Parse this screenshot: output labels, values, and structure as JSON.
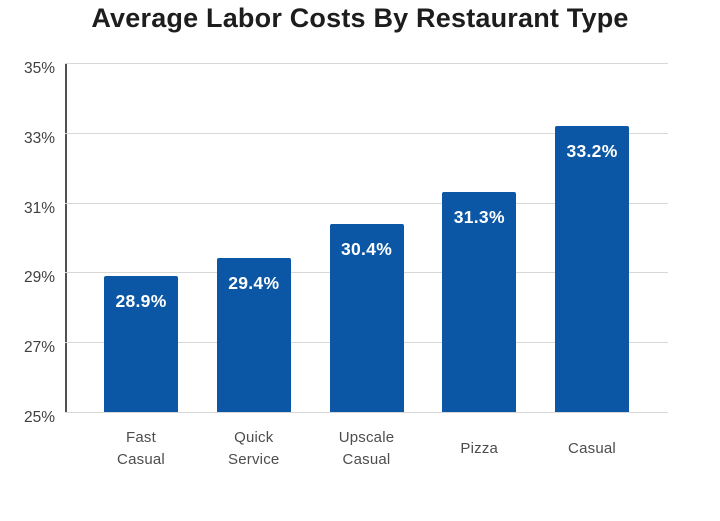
{
  "title": "Average Labor Costs By Restaurant Type",
  "colors": {
    "bar": "#0b57a6",
    "bar_value_text": "#ffffff",
    "gridline": "#d8d8d8",
    "y_axis_line": "#515151",
    "title_text": "#1d1d1d",
    "y_tick_text": "#404040",
    "x_tick_text": "#4d4d4d",
    "background": "#ffffff"
  },
  "chart_data": {
    "type": "bar",
    "title": "Average Labor Costs By Restaurant Type",
    "categories": [
      "Fast Casual",
      "Quick Service",
      "Upscale Casual",
      "Pizza",
      "Casual"
    ],
    "category_label_lines": [
      [
        "Fast",
        "Casual"
      ],
      [
        "Quick",
        "Service"
      ],
      [
        "Upscale",
        "Casual"
      ],
      [
        "Pizza"
      ],
      [
        "Casual"
      ]
    ],
    "values": [
      28.9,
      29.4,
      30.4,
      31.3,
      33.2
    ],
    "value_labels": [
      "28.9%",
      "29.4%",
      "30.4%",
      "31.3%",
      "33.2%"
    ],
    "xlabel": "",
    "ylabel": "",
    "ylim": [
      25,
      35
    ],
    "yticks": [
      {
        "value": 35,
        "label": "35%"
      },
      {
        "value": 33,
        "label": "33%"
      },
      {
        "value": 31,
        "label": "31%"
      },
      {
        "value": 29,
        "label": "29%"
      },
      {
        "value": 27,
        "label": "27%"
      },
      {
        "value": 25,
        "label": "25%"
      }
    ],
    "grid": true,
    "legend": false,
    "bar_color": "#0b57a6",
    "value_label_position": "inside-top",
    "value_label_color": "#ffffff"
  }
}
